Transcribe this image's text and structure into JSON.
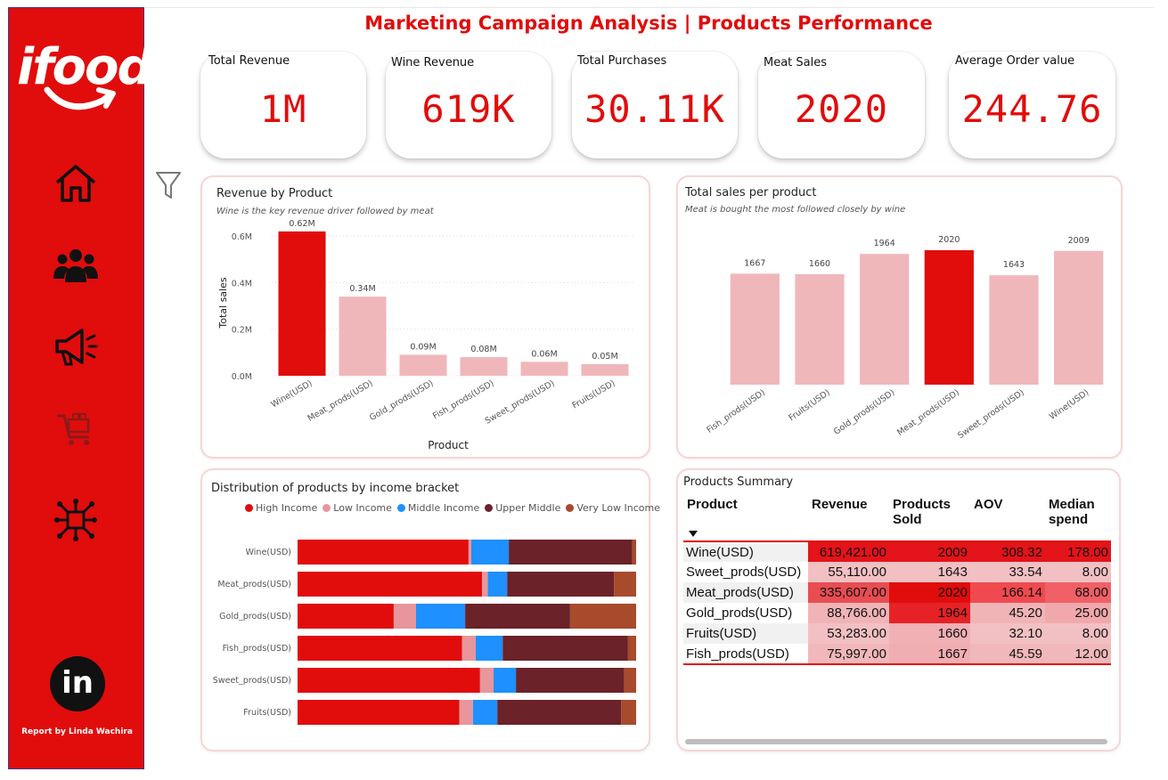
{
  "brand": {
    "logo_text": "ifood",
    "credit": "Report by Linda Wachira",
    "linkedin_text": "in"
  },
  "nav": [
    {
      "name": "home-icon"
    },
    {
      "name": "customers-icon"
    },
    {
      "name": "campaign-megaphone-icon"
    },
    {
      "name": "shopping-cart-icon"
    },
    {
      "name": "network-icon"
    }
  ],
  "header": {
    "title": "Marketing Campaign Analysis | Products Performance"
  },
  "kpis": [
    {
      "label": "Total Revenue",
      "value": "1M"
    },
    {
      "label": "Wine Revenue",
      "value": "619K"
    },
    {
      "label": "Total Purchases",
      "value": "30.11K"
    },
    {
      "label": "Meat Sales",
      "value": "2020"
    },
    {
      "label": "Average Order value",
      "value": "244.76"
    }
  ],
  "colors": {
    "accent": "#e10c0c",
    "light": "#f0b7ba",
    "high_income": "#e10c0c",
    "low_income": "#e8969b",
    "middle_income": "#1e90ff",
    "upper_middle": "#6b2229",
    "very_low_income": "#a74b2c"
  },
  "chart_data": [
    {
      "type": "bar",
      "title": "Revenue by Product",
      "subtitle": "Wine is the key revenue driver followed by meat",
      "xlabel": "Product",
      "ylabel": "Total sales",
      "categories": [
        "Wine(USD)",
        "Meat_prods(USD)",
        "Gold_prods(USD)",
        "Fish_prods(USD)",
        "Sweet_prods(USD)",
        "Fruits(USD)"
      ],
      "values": [
        0.62,
        0.34,
        0.09,
        0.08,
        0.06,
        0.05
      ],
      "data_labels": [
        "0.62M",
        "0.34M",
        "0.09M",
        "0.08M",
        "0.06M",
        "0.05M"
      ],
      "yticks": [
        "0.0M",
        "0.2M",
        "0.4M",
        "0.6M"
      ],
      "ytick_values": [
        0,
        0.2,
        0.4,
        0.6
      ],
      "ylim": [
        0,
        0.7
      ],
      "highlight_index": 0,
      "grid": true
    },
    {
      "type": "bar",
      "title": "Total sales per product",
      "subtitle": "Meat is bought the most followed closely by wine",
      "categories": [
        "Fish_prods(USD)",
        "Fruits(USD)",
        "Gold_prods(USD)",
        "Meat_prods(USD)",
        "Sweet_prods(USD)",
        "Wine(USD)"
      ],
      "values": [
        1667,
        1660,
        1964,
        2020,
        1643,
        2009
      ],
      "data_labels": [
        "1667",
        "1660",
        "1964",
        "2020",
        "1643",
        "2009"
      ],
      "ylim": [
        0,
        2100
      ],
      "highlight_index": 3
    },
    {
      "type": "bar",
      "stacked": "100%",
      "orientation": "horizontal",
      "title": "Distribution of products by income bracket",
      "legend_placement": "top-right",
      "categories": [
        "Wine(USD)",
        "Meat_prods(USD)",
        "Gold_prods(USD)",
        "Fish_prods(USD)",
        "Sweet_prods(USD)",
        "Fruits(USD)"
      ],
      "series": [
        {
          "name": "High Income",
          "values": [
            50.5,
            54.5,
            28.4,
            48.6,
            53.9,
            47.8
          ]
        },
        {
          "name": "Low Income",
          "values": [
            0.8,
            1.7,
            6.6,
            4.0,
            4.0,
            4.0
          ]
        },
        {
          "name": "Middle Income",
          "values": [
            11.1,
            5.7,
            14.5,
            8.0,
            6.6,
            7.2
          ]
        },
        {
          "name": "Upper Middle",
          "values": [
            36.5,
            31.6,
            31.0,
            36.9,
            32.0,
            36.6
          ]
        },
        {
          "name": "Very Low Income",
          "values": [
            1.1,
            6.5,
            19.5,
            2.5,
            3.5,
            4.4
          ]
        }
      ]
    }
  ],
  "summary": {
    "title": "Products Summary",
    "columns": [
      "Product",
      "Revenue",
      "Products Sold",
      "AOV",
      "Median spend"
    ],
    "rows": [
      [
        "Wine(USD)",
        "619,421.00",
        "2009",
        "308.32",
        "178.00"
      ],
      [
        "Sweet_prods(USD)",
        "55,110.00",
        "1643",
        "33.54",
        "8.00"
      ],
      [
        "Meat_prods(USD)",
        "335,607.00",
        "2020",
        "166.14",
        "68.00"
      ],
      [
        "Gold_prods(USD)",
        "88,766.00",
        "1964",
        "45.20",
        "25.00"
      ],
      [
        "Fruits(USD)",
        "53,283.00",
        "1660",
        "32.10",
        "8.00"
      ],
      [
        "Fish_prods(USD)",
        "75,997.00",
        "1667",
        "45.59",
        "12.00"
      ]
    ],
    "cell_colors": [
      [
        "#f1f1f1",
        "#e3141a",
        "#e3141a",
        "#e3141a",
        "#e3141a"
      ],
      [
        "#ffffff",
        "#f2c0c3",
        "#f2c0c3",
        "#f2c0c3",
        "#f2c0c3"
      ],
      [
        "#f1f1f1",
        "#e84d52",
        "#e10c0c",
        "#f04a50",
        "#f06066"
      ],
      [
        "#ffffff",
        "#f0b4b7",
        "#e62226",
        "#f0b4b7",
        "#f0a8ac"
      ],
      [
        "#f1f1f1",
        "#f2c0c3",
        "#f0b0b4",
        "#f2c0c3",
        "#f2c0c3"
      ],
      [
        "#ffffff",
        "#f0b8bb",
        "#f0aeb2",
        "#f0b8bb",
        "#f0b8bb"
      ]
    ]
  }
}
